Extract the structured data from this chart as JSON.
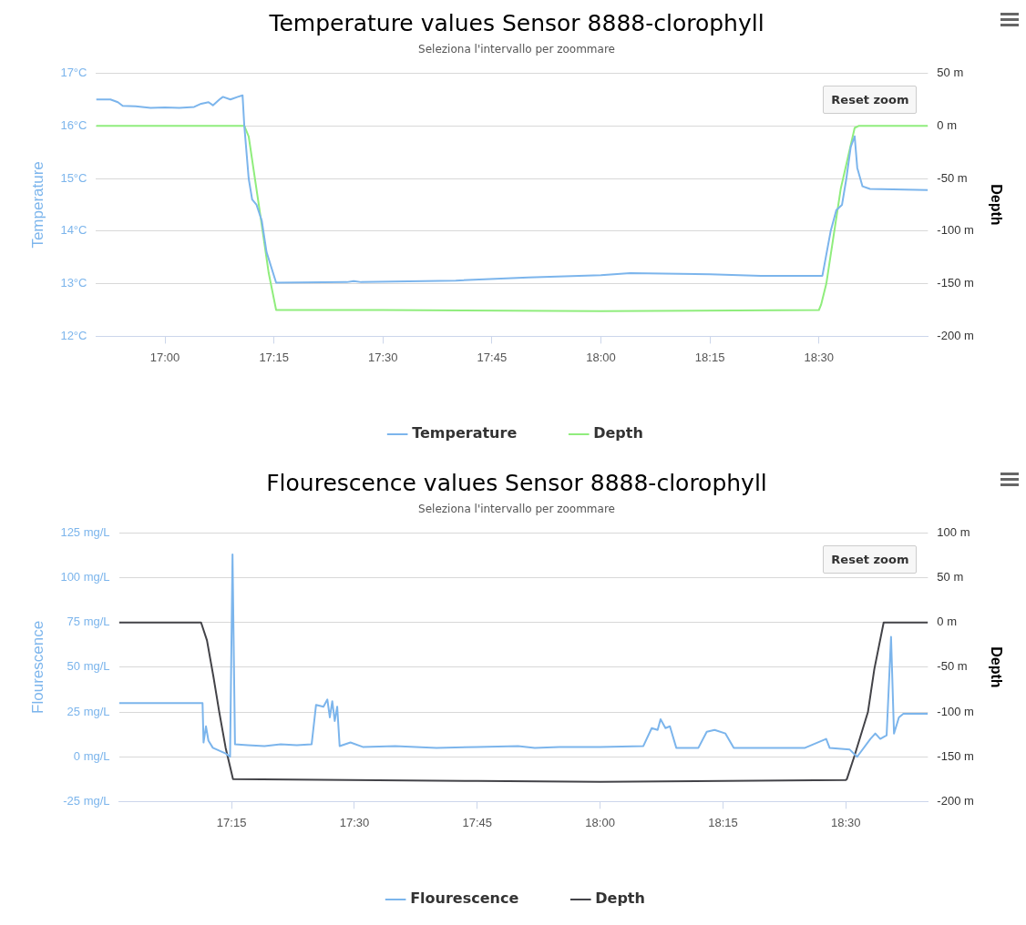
{
  "chart_data": [
    {
      "type": "line",
      "title": "Temperature values Sensor 8888-clorophyll",
      "subtitle": "Seleziona l'intervallo per zoommare",
      "ylabel": "Temperature",
      "y2label": "Depth",
      "annotations": [
        "Reset zoom"
      ],
      "grid": "y",
      "legend": "bottom",
      "xlim": [
        16.842,
        18.75
      ],
      "xticks": [
        {
          "value": 17,
          "label": "17:00"
        },
        {
          "value": 17.25,
          "label": "17:15"
        },
        {
          "value": 17.5,
          "label": "17:30"
        },
        {
          "value": 17.75,
          "label": "17:45"
        },
        {
          "value": 18,
          "label": "18:00"
        },
        {
          "value": 18.25,
          "label": "18:15"
        },
        {
          "value": 18.5,
          "label": "18:30"
        }
      ],
      "ylim": [
        12,
        17
      ],
      "yticks": [
        {
          "value": 12,
          "label": "12°C"
        },
        {
          "value": 13,
          "label": "13°C"
        },
        {
          "value": 14,
          "label": "14°C"
        },
        {
          "value": 15,
          "label": "15°C"
        },
        {
          "value": 16,
          "label": "16°C"
        },
        {
          "value": 17,
          "label": "17°C"
        }
      ],
      "y2lim": [
        -200,
        50
      ],
      "y2ticks": [
        {
          "value": -200,
          "label": "-200 m"
        },
        {
          "value": -150,
          "label": "-150 m"
        },
        {
          "value": -100,
          "label": "-100 m"
        },
        {
          "value": -50,
          "label": "-50 m"
        },
        {
          "value": 0,
          "label": "0 m"
        },
        {
          "value": 50,
          "label": "50 m"
        }
      ],
      "series": [
        {
          "name": "Temperature",
          "color": "#7cb5ec",
          "x": [
            16.842,
            16.875,
            16.892,
            16.903,
            16.933,
            16.967,
            17.0,
            17.033,
            17.067,
            17.083,
            17.1,
            17.11,
            17.125,
            17.133,
            17.15,
            17.167,
            17.178,
            17.182,
            17.192,
            17.2,
            17.21,
            17.222,
            17.233,
            17.255,
            17.417,
            17.433,
            17.45,
            17.667,
            17.833,
            18.0,
            18.067,
            18.25,
            18.367,
            18.508,
            18.527,
            18.54,
            18.553,
            18.563,
            18.573,
            18.582,
            18.588,
            18.6,
            18.617,
            18.75
          ],
          "values": [
            16.5,
            16.5,
            16.45,
            16.38,
            16.37,
            16.34,
            16.35,
            16.34,
            16.36,
            16.42,
            16.45,
            16.39,
            16.5,
            16.55,
            16.5,
            16.55,
            16.58,
            16.0,
            15.0,
            14.6,
            14.5,
            14.2,
            13.6,
            13.02,
            13.03,
            13.05,
            13.03,
            13.06,
            13.12,
            13.16,
            13.2,
            13.18,
            13.15,
            13.15,
            14.0,
            14.4,
            14.5,
            15.0,
            15.6,
            15.8,
            15.2,
            14.85,
            14.8,
            14.78
          ]
        },
        {
          "name": "Depth",
          "color": "#90ed7d",
          "axis": "y2",
          "x": [
            16.842,
            17.182,
            17.192,
            17.217,
            17.238,
            17.255,
            17.5,
            18.0,
            18.5,
            18.505,
            18.517,
            18.55,
            18.582,
            18.592,
            18.75
          ],
          "values": [
            0,
            0,
            -10,
            -80,
            -140,
            -175,
            -175,
            -176,
            -175,
            -170,
            -150,
            -60,
            -2,
            0,
            0
          ]
        }
      ]
    },
    {
      "type": "line",
      "title": "Flourescence values Sensor 8888-clorophyll",
      "subtitle": "Seleziona l'intervallo per zoommare",
      "ylabel": "Flourescence",
      "y2label": "Depth",
      "annotations": [
        "Reset zoom"
      ],
      "grid": "y",
      "legend": "bottom",
      "xlim": [
        17.021,
        18.667
      ],
      "xticks": [
        {
          "value": 17.25,
          "label": "17:15"
        },
        {
          "value": 17.5,
          "label": "17:30"
        },
        {
          "value": 17.75,
          "label": "17:45"
        },
        {
          "value": 18,
          "label": "18:00"
        },
        {
          "value": 18.25,
          "label": "18:15"
        },
        {
          "value": 18.5,
          "label": "18:30"
        }
      ],
      "ylim": [
        -25,
        125
      ],
      "yticks": [
        {
          "value": -25,
          "label": "-25 mg/L"
        },
        {
          "value": 0,
          "label": "0 mg/L"
        },
        {
          "value": 25,
          "label": "25 mg/L"
        },
        {
          "value": 50,
          "label": "50 mg/L"
        },
        {
          "value": 75,
          "label": "75 mg/L"
        },
        {
          "value": 100,
          "label": "100 mg/L"
        },
        {
          "value": 125,
          "label": "125 mg/L"
        }
      ],
      "y2lim": [
        -200,
        100
      ],
      "y2ticks": [
        {
          "value": -200,
          "label": "-200 m"
        },
        {
          "value": -150,
          "label": "-150 m"
        },
        {
          "value": -100,
          "label": "-100 m"
        },
        {
          "value": -50,
          "label": "-50 m"
        },
        {
          "value": 0,
          "label": "0 m"
        },
        {
          "value": 50,
          "label": "50 m"
        },
        {
          "value": 100,
          "label": "100 m"
        }
      ],
      "series": [
        {
          "name": "Flourescence",
          "color": "#7cb5ec",
          "x": [
            17.021,
            17.191,
            17.193,
            17.198,
            17.203,
            17.212,
            17.237,
            17.247,
            17.252,
            17.257,
            17.283,
            17.317,
            17.35,
            17.383,
            17.413,
            17.422,
            17.437,
            17.445,
            17.45,
            17.455,
            17.46,
            17.465,
            17.47,
            17.492,
            17.517,
            17.583,
            17.667,
            17.75,
            17.833,
            17.867,
            17.917,
            18.0,
            18.088,
            18.105,
            18.117,
            18.123,
            18.133,
            18.142,
            18.155,
            18.2,
            18.217,
            18.233,
            18.255,
            18.272,
            18.333,
            18.417,
            18.46,
            18.467,
            18.508,
            18.523,
            18.55,
            18.56,
            18.57,
            18.583,
            18.592,
            18.598,
            18.608,
            18.617,
            18.667
          ],
          "values": [
            30,
            30,
            8,
            17,
            9,
            5,
            2,
            0,
            113,
            7,
            6.5,
            6,
            7,
            6.5,
            7,
            29,
            28,
            32,
            22,
            31,
            20,
            28,
            6,
            8,
            5.5,
            6,
            5,
            5.5,
            6,
            5,
            5.5,
            5.5,
            6,
            16,
            15,
            21,
            16,
            17,
            5,
            5,
            14,
            15,
            13,
            5,
            5,
            5,
            10,
            5,
            4,
            0,
            10,
            13,
            10,
            12,
            67,
            13,
            22,
            24,
            24
          ]
        },
        {
          "name": "Depth",
          "color": "#434348",
          "axis": "y2",
          "x": [
            17.021,
            17.188,
            17.2,
            17.213,
            17.225,
            17.238,
            17.253,
            17.75,
            18.0,
            18.5,
            18.502,
            18.517,
            18.545,
            18.558,
            18.577,
            18.667
          ],
          "values": [
            0,
            0,
            -20,
            -60,
            -100,
            -140,
            -175,
            -177,
            -178,
            -176,
            -175,
            -150,
            -100,
            -52,
            0,
            0
          ]
        }
      ]
    }
  ]
}
